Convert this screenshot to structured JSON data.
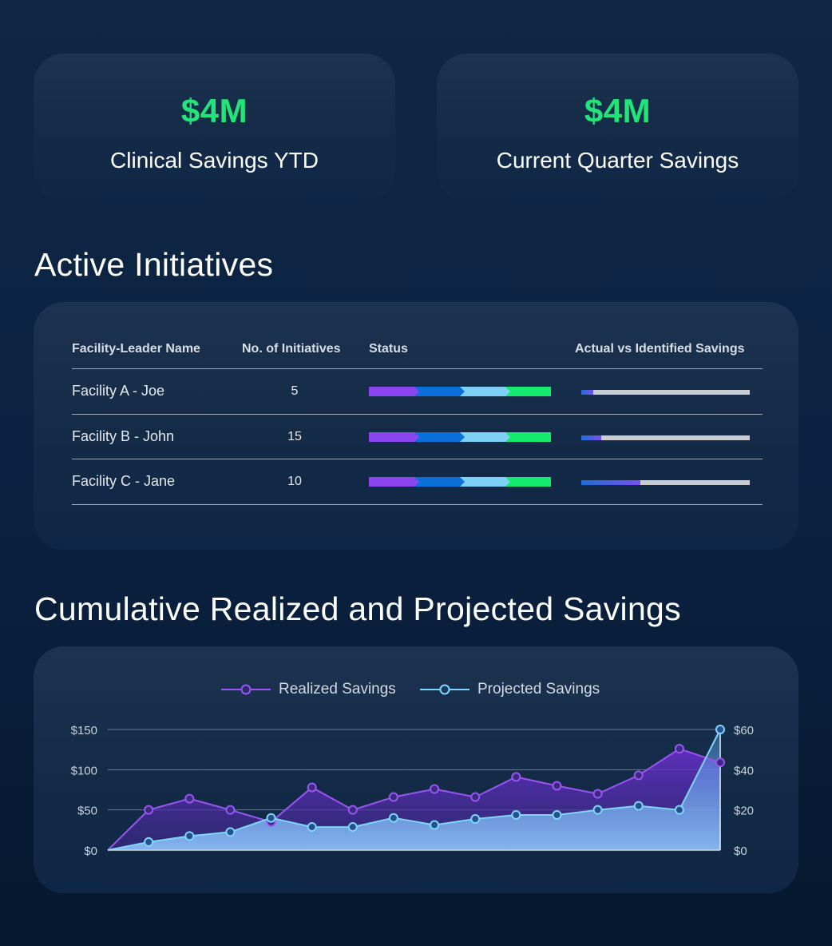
{
  "kpis": [
    {
      "value": "$4M",
      "label": "Clinical Savings YTD"
    },
    {
      "value": "$4M",
      "label": "Current Quarter Savings"
    }
  ],
  "initiatives": {
    "title": "Active Initiatives",
    "columns": [
      "Facility-Leader Name",
      "No. of Initiatives",
      "Status",
      "Actual vs Identified Savings"
    ],
    "status_colors": [
      "#8b45f0",
      "#0a6fd8",
      "#7fd0f7",
      "#13ea6e"
    ],
    "rows": [
      {
        "name": "Facility A - Joe",
        "count": "5",
        "savings_fraction": 0.07
      },
      {
        "name": "Facility B - John",
        "count": "15",
        "savings_fraction": 0.12
      },
      {
        "name": "Facility C - Jane",
        "count": "10",
        "savings_fraction": 0.35
      }
    ]
  },
  "savings_chart": {
    "title": "Cumulative Realized and Projected Savings"
  },
  "chart_data": {
    "type": "area",
    "x": [
      0,
      1,
      2,
      3,
      4,
      5,
      6,
      7,
      8,
      9,
      10,
      11,
      12,
      13,
      14,
      15
    ],
    "series": [
      {
        "name": "Realized Savings",
        "axis": "left",
        "color": "#9a55f2",
        "values": [
          0,
          50,
          64,
          50,
          35,
          78,
          50,
          66,
          76,
          66,
          91,
          80,
          70,
          93,
          126,
          109
        ]
      },
      {
        "name": "Projected Savings",
        "axis": "right",
        "color": "#7fd6ff",
        "values": [
          0,
          4,
          7,
          9,
          16,
          11.5,
          11.5,
          16,
          12.5,
          15.5,
          17.5,
          17.5,
          20,
          22,
          20,
          60
        ]
      }
    ],
    "y_left": {
      "ticks": [
        "$0",
        "$50",
        "$100",
        "$150"
      ],
      "range": [
        0,
        150
      ]
    },
    "y_right": {
      "ticks": [
        "$0",
        "$20",
        "$40",
        "$60"
      ],
      "range": [
        0,
        60
      ]
    },
    "grid": true,
    "legend": "top-center"
  }
}
